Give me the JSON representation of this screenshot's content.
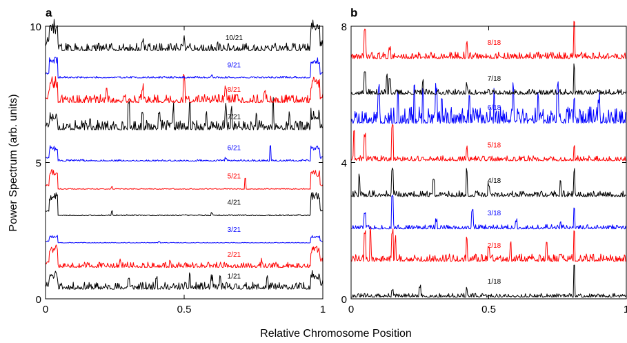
{
  "figure": {
    "xlabel": "Relative Chromosome Position",
    "ylabel": "Power Spectrum (arb. units)"
  },
  "chart_data": [
    {
      "type": "line",
      "panel_label": "a",
      "xlim": [
        0,
        1
      ],
      "ylim": [
        0,
        10
      ],
      "x_ticks": [
        0,
        0.5,
        1
      ],
      "x_tick_labels": [
        "0",
        "0.5",
        "1"
      ],
      "y_ticks": [
        0,
        5,
        10
      ],
      "y_tick_labels": [
        "0",
        "5",
        "10"
      ],
      "grid": false,
      "legend": "none",
      "series": [
        {
          "name": "1/21",
          "color": "#000000",
          "baseline": 0.35,
          "noise": 0.12,
          "edge": 0.55,
          "seed": 11,
          "peaks": [
            [
              0.3,
              0.35
            ],
            [
              0.4,
              0.4
            ],
            [
              0.52,
              0.5
            ],
            [
              0.6,
              0.3
            ],
            [
              0.63,
              0.45
            ],
            [
              0.8,
              0.3
            ]
          ]
        },
        {
          "name": "2/21",
          "color": "#ff0000",
          "baseline": 1.15,
          "noise": 0.09,
          "edge": 0.75,
          "seed": 12,
          "peaks": [
            [
              0.27,
              0.18
            ],
            [
              0.45,
              0.15
            ],
            [
              0.78,
              0.18
            ]
          ]
        },
        {
          "name": "3/21",
          "color": "#0000ff",
          "baseline": 2.05,
          "noise": 0.01,
          "edge": 0.28,
          "seed": 13,
          "peaks": [
            [
              0.41,
              0.05
            ]
          ]
        },
        {
          "name": "4/21",
          "color": "#000000",
          "baseline": 3.05,
          "noise": 0.02,
          "edge": 0.85,
          "seed": 14,
          "peaks": [
            [
              0.24,
              0.15
            ],
            [
              0.6,
              0.08
            ]
          ]
        },
        {
          "name": "5/21",
          "color": "#ff0000",
          "baseline": 4.02,
          "noise": 0.015,
          "edge": 0.7,
          "seed": 15,
          "peaks": [
            [
              0.24,
              0.08
            ],
            [
              0.72,
              0.4
            ]
          ]
        },
        {
          "name": "6/21",
          "color": "#0000ff",
          "baseline": 5.05,
          "noise": 0.03,
          "edge": 0.55,
          "seed": 16,
          "peaks": [
            [
              0.65,
              0.08
            ],
            [
              0.81,
              0.55
            ]
          ]
        },
        {
          "name": "7/21",
          "color": "#000000",
          "baseline": 6.2,
          "noise": 0.16,
          "edge": 0.45,
          "seed": 17,
          "peaks": [
            [
              0.16,
              0.4
            ],
            [
              0.3,
              0.7
            ],
            [
              0.35,
              0.55
            ],
            [
              0.41,
              0.6
            ],
            [
              0.46,
              0.65
            ],
            [
              0.52,
              0.8
            ],
            [
              0.58,
              0.55
            ],
            [
              0.65,
              0.65
            ],
            [
              0.67,
              0.7
            ],
            [
              0.76,
              0.45
            ],
            [
              0.82,
              0.85
            ],
            [
              0.88,
              0.5
            ]
          ]
        },
        {
          "name": "8/21",
          "color": "#ff0000",
          "baseline": 7.2,
          "noise": 0.14,
          "edge": 0.75,
          "seed": 18,
          "peaks": [
            [
              0.22,
              0.45
            ],
            [
              0.35,
              0.4
            ],
            [
              0.5,
              0.75
            ],
            [
              0.65,
              0.45
            ],
            [
              0.79,
              0.35
            ]
          ]
        },
        {
          "name": "9/21",
          "color": "#0000ff",
          "baseline": 8.1,
          "noise": 0.03,
          "edge": 0.75,
          "seed": 19,
          "peaks": [
            [
              0.6,
              0.08
            ]
          ]
        },
        {
          "name": "10/21",
          "color": "#000000",
          "baseline": 9.1,
          "noise": 0.13,
          "edge": 0.9,
          "seed": 20,
          "peaks": [
            [
              0.35,
              0.3
            ],
            [
              0.5,
              0.3
            ],
            [
              0.62,
              0.25
            ]
          ]
        }
      ]
    },
    {
      "type": "line",
      "panel_label": "b",
      "xlim": [
        0,
        1
      ],
      "ylim": [
        0,
        8
      ],
      "x_ticks": [
        0,
        0.5,
        1
      ],
      "x_tick_labels": [
        "0",
        "0.5",
        "1"
      ],
      "y_ticks": [
        0,
        4,
        8
      ],
      "y_tick_labels": [
        "0",
        "4",
        "8"
      ],
      "grid": false,
      "legend": "none",
      "series": [
        {
          "name": "1/18",
          "color": "#000000",
          "baseline": 0.05,
          "noise": 0.05,
          "edge": 0,
          "seed": 31,
          "peaks": [
            [
              0.15,
              0.2
            ],
            [
              0.25,
              0.25
            ],
            [
              0.42,
              0.2
            ],
            [
              0.81,
              0.9
            ]
          ]
        },
        {
          "name": "2/18",
          "color": "#ff0000",
          "baseline": 1.1,
          "noise": 0.1,
          "edge": 0,
          "seed": 32,
          "peaks": [
            [
              0.05,
              0.75
            ],
            [
              0.07,
              0.85
            ],
            [
              0.15,
              0.8
            ],
            [
              0.16,
              0.55
            ],
            [
              0.42,
              0.65
            ],
            [
              0.5,
              0.4
            ],
            [
              0.58,
              0.5
            ],
            [
              0.71,
              0.35
            ],
            [
              0.81,
              0.85
            ]
          ]
        },
        {
          "name": "3/18",
          "color": "#0000ff",
          "baseline": 2.05,
          "noise": 0.06,
          "edge": 0,
          "seed": 33,
          "peaks": [
            [
              0.05,
              0.45
            ],
            [
              0.15,
              0.95
            ],
            [
              0.31,
              0.2
            ],
            [
              0.44,
              0.5
            ],
            [
              0.6,
              0.2
            ],
            [
              0.76,
              0.18
            ],
            [
              0.81,
              0.6
            ]
          ]
        },
        {
          "name": "4/18",
          "color": "#000000",
          "baseline": 3.0,
          "noise": 0.08,
          "edge": 0,
          "seed": 34,
          "peaks": [
            [
              0.03,
              0.55
            ],
            [
              0.15,
              0.75
            ],
            [
              0.3,
              0.4
            ],
            [
              0.42,
              0.7
            ],
            [
              0.5,
              0.3
            ],
            [
              0.76,
              0.45
            ],
            [
              0.81,
              0.7
            ]
          ]
        },
        {
          "name": "5/18",
          "color": "#ff0000",
          "baseline": 4.05,
          "noise": 0.07,
          "edge": 0,
          "seed": 35,
          "peaks": [
            [
              0.01,
              0.8
            ],
            [
              0.05,
              0.7
            ],
            [
              0.15,
              0.95
            ],
            [
              0.42,
              0.3
            ],
            [
              0.81,
              0.4
            ]
          ]
        },
        {
          "name": "6/18",
          "color": "#0000ff",
          "baseline": 5.15,
          "noise": 0.22,
          "edge": 0,
          "seed": 36,
          "peaks": [
            [
              0.1,
              0.8
            ],
            [
              0.17,
              0.9
            ],
            [
              0.23,
              1.1
            ],
            [
              0.26,
              0.8
            ],
            [
              0.31,
              0.9
            ],
            [
              0.33,
              0.7
            ],
            [
              0.43,
              0.8
            ],
            [
              0.52,
              0.7
            ],
            [
              0.59,
              0.8
            ],
            [
              0.68,
              0.7
            ],
            [
              0.75,
              0.9
            ],
            [
              0.81,
              0.7
            ],
            [
              0.9,
              0.6
            ]
          ]
        },
        {
          "name": "7/18",
          "color": "#000000",
          "baseline": 6.0,
          "noise": 0.07,
          "edge": 0,
          "seed": 37,
          "peaks": [
            [
              0.05,
              0.65
            ],
            [
              0.13,
              0.5
            ],
            [
              0.14,
              0.45
            ],
            [
              0.26,
              0.3
            ],
            [
              0.42,
              0.25
            ],
            [
              0.81,
              0.75
            ]
          ]
        },
        {
          "name": "8/18",
          "color": "#ff0000",
          "baseline": 7.05,
          "noise": 0.09,
          "edge": 0,
          "seed": 38,
          "peaks": [
            [
              0.05,
              0.7
            ],
            [
              0.14,
              0.25
            ],
            [
              0.42,
              0.4
            ],
            [
              0.81,
              0.95
            ]
          ]
        }
      ]
    }
  ]
}
